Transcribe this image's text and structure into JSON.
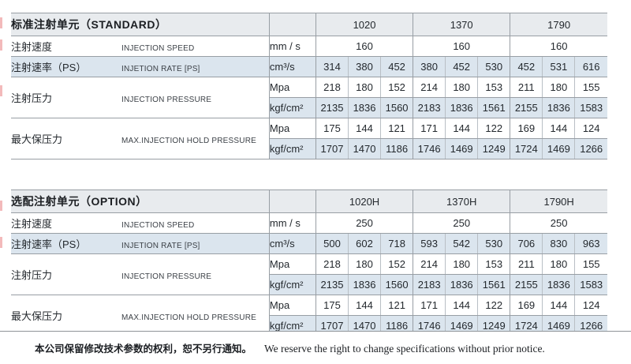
{
  "page": {
    "footer_zh": "本公司保留修改技术参数的权利，恕不另行通知。",
    "footer_en": "We reserve the right to change specifications without prior notice."
  },
  "tables": [
    {
      "title": "标准注射单元（STANDARD）",
      "models": [
        "1020",
        "1370",
        "1790"
      ],
      "groups": [
        {
          "label_zh": "注射速度",
          "label_en": "INJECTION SPEED",
          "rows": [
            {
              "unit": "mm / s",
              "shaded": false,
              "span_values": [
                "160",
                "160",
                "160"
              ]
            }
          ]
        },
        {
          "label_zh": "注射速率（PS）",
          "label_en": "INJETION RATE [PS]",
          "rows": [
            {
              "unit": "cm³/s",
              "shaded": true,
              "values": [
                "314",
                "380",
                "452",
                "380",
                "452",
                "530",
                "452",
                "531",
                "616"
              ]
            }
          ]
        },
        {
          "label_zh": "注射压力",
          "label_en": "INJECTION PRESSURE",
          "rows": [
            {
              "unit": "Mpa",
              "shaded": false,
              "values": [
                "218",
                "180",
                "152",
                "214",
                "180",
                "153",
                "211",
                "180",
                "155"
              ]
            },
            {
              "unit": "kgf/cm²",
              "shaded": true,
              "values": [
                "2135",
                "1836",
                "1560",
                "2183",
                "1836",
                "1561",
                "2155",
                "1836",
                "1583"
              ]
            }
          ]
        },
        {
          "label_zh": "最大保压力",
          "label_en": "MAX.INJECTION HOLD PRESSURE",
          "rows": [
            {
              "unit": "Mpa",
              "shaded": false,
              "values": [
                "175",
                "144",
                "121",
                "171",
                "144",
                "122",
                "169",
                "144",
                "124"
              ]
            },
            {
              "unit": "kgf/cm²",
              "shaded": true,
              "values": [
                "1707",
                "1470",
                "1186",
                "1746",
                "1469",
                "1249",
                "1724",
                "1469",
                "1266"
              ]
            }
          ]
        }
      ]
    },
    {
      "title": "选配注射单元（OPTION）",
      "models": [
        "1020H",
        "1370H",
        "1790H"
      ],
      "groups": [
        {
          "label_zh": "注射速度",
          "label_en": "INJECTION SPEED",
          "rows": [
            {
              "unit": "mm / s",
              "shaded": false,
              "span_values": [
                "250",
                "250",
                "250"
              ]
            }
          ]
        },
        {
          "label_zh": "注射速率（PS）",
          "label_en": "INJETION RATE [PS]",
          "rows": [
            {
              "unit": "cm³/s",
              "shaded": true,
              "values": [
                "500",
                "602",
                "718",
                "593",
                "542",
                "530",
                "706",
                "830",
                "963"
              ]
            }
          ]
        },
        {
          "label_zh": "注射压力",
          "label_en": "INJECTION PRESSURE",
          "rows": [
            {
              "unit": "Mpa",
              "shaded": false,
              "values": [
                "218",
                "180",
                "152",
                "214",
                "180",
                "153",
                "211",
                "180",
                "155"
              ]
            },
            {
              "unit": "kgf/cm²",
              "shaded": true,
              "values": [
                "2135",
                "1836",
                "1560",
                "2183",
                "1836",
                "1561",
                "2155",
                "1836",
                "1583"
              ]
            }
          ]
        },
        {
          "label_zh": "最大保压力",
          "label_en": "MAX.INJECTION HOLD PRESSURE",
          "rows": [
            {
              "unit": "Mpa",
              "shaded": false,
              "values": [
                "175",
                "144",
                "121",
                "171",
                "144",
                "122",
                "169",
                "144",
                "124"
              ]
            },
            {
              "unit": "kgf/cm²",
              "shaded": true,
              "values": [
                "1707",
                "1470",
                "1186",
                "1746",
                "1469",
                "1249",
                "1724",
                "1469",
                "1266"
              ]
            }
          ]
        }
      ]
    }
  ],
  "colors": {
    "title_row_bg": "#e8ebee",
    "shaded_row_bg": "#dbe5ee",
    "border_dark": "#989ea4",
    "border_light": "#b9bfc5",
    "edge_artifact": "#f3babb"
  }
}
